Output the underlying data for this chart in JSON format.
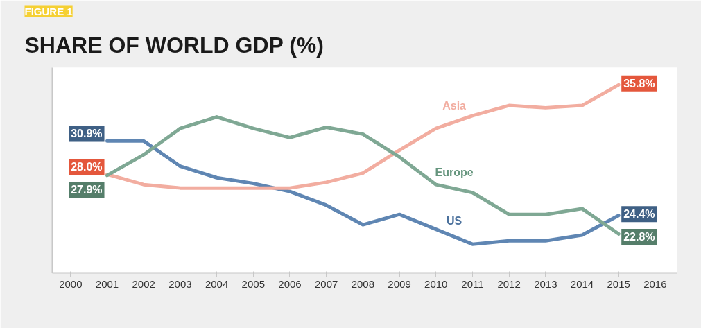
{
  "chart_data": {
    "type": "line",
    "title": "SHARE OF WORLD GDP (%)",
    "annotations": [
      "FIGURE 1"
    ],
    "x": [
      2001,
      2002,
      2003,
      2004,
      2005,
      2006,
      2007,
      2008,
      2009,
      2010,
      2011,
      2012,
      2013,
      2014,
      2015
    ],
    "xlim": [
      1999.5,
      2016.6
    ],
    "xticks": [
      2000,
      2001,
      2002,
      2003,
      2004,
      2005,
      2006,
      2007,
      2008,
      2009,
      2010,
      2011,
      2012,
      2013,
      2014,
      2015,
      2016
    ],
    "tick_labels": "x",
    "grid": false,
    "marker": "none",
    "line_style": "solid",
    "series": [
      {
        "name": "US",
        "color": "#5f86b3",
        "values": [
          30.9,
          30.9,
          28.7,
          27.7,
          27.2,
          26.5,
          25.3,
          23.6,
          24.5,
          23.2,
          21.9,
          22.2,
          22.2,
          22.7,
          24.4
        ],
        "value_labels": [
          "30.9%",
          null,
          null,
          null,
          null,
          null,
          null,
          null,
          null,
          null,
          null,
          null,
          null,
          null,
          "24.4%"
        ]
      },
      {
        "name": "Asia",
        "color": "#f2ada0",
        "values": [
          28.0,
          27.1,
          26.8,
          26.8,
          26.8,
          26.8,
          27.3,
          28.1,
          30.1,
          32.0,
          33.1,
          34.0,
          33.8,
          34.0,
          35.8
        ],
        "value_labels": [
          "28.0%",
          null,
          null,
          null,
          null,
          null,
          null,
          null,
          null,
          null,
          null,
          null,
          null,
          null,
          "35.8%"
        ]
      },
      {
        "name": "Europe",
        "color": "#7fa894",
        "values": [
          27.9,
          29.7,
          32.0,
          33.0,
          32.0,
          31.2,
          32.1,
          31.5,
          29.5,
          27.1,
          26.4,
          24.5,
          24.5,
          25.0,
          22.8
        ],
        "value_labels": [
          "27.9%",
          null,
          null,
          null,
          null,
          null,
          null,
          null,
          null,
          null,
          null,
          null,
          null,
          null,
          "22.8%"
        ]
      }
    ]
  }
}
